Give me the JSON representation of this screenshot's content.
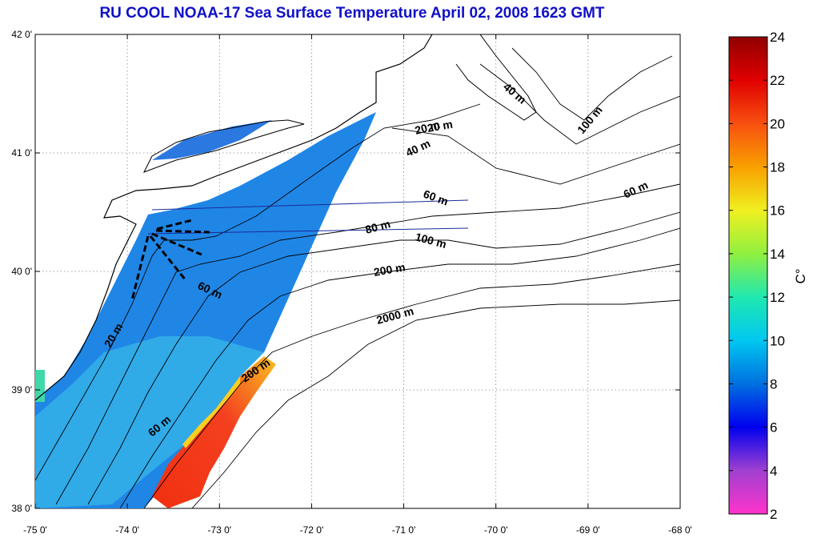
{
  "title": "RU COOL  NOAA-17 Sea Surface Temperature April 02, 2008 1623 GMT",
  "map": {
    "lon_range": [
      -75,
      -68
    ],
    "lat_range": [
      38,
      42
    ],
    "x_ticks": [
      "-75 0'",
      "-74 0'",
      "-73 0'",
      "-72 0'",
      "-71 0'",
      "-70 0'",
      "-69 0'",
      "-68 0'"
    ],
    "y_ticks": [
      "38 0'",
      "39 0'",
      "40 0'",
      "41 0'",
      "42 0'"
    ],
    "grid": "dotted"
  },
  "contour_labels": [
    "20 m",
    "40 m",
    "60 m",
    "80 m",
    "100 m",
    "200 m",
    "2000 m",
    "60 m",
    "20 m",
    "200 m",
    "60 m",
    "20 m",
    "40 m",
    "100 m",
    "60 m"
  ],
  "colorbar": {
    "unit": "C°",
    "ticks": [
      "2",
      "4",
      "6",
      "8",
      "10",
      "12",
      "14",
      "16",
      "18",
      "20",
      "22",
      "24"
    ],
    "range": [
      2,
      24
    ],
    "colors": [
      "#ff33cc",
      "#a040d0",
      "#0000ee",
      "#0070e0",
      "#00c8f0",
      "#20e8b0",
      "#90f040",
      "#f0f020",
      "#f8a000",
      "#f85010",
      "#e00000",
      "#900000"
    ]
  }
}
